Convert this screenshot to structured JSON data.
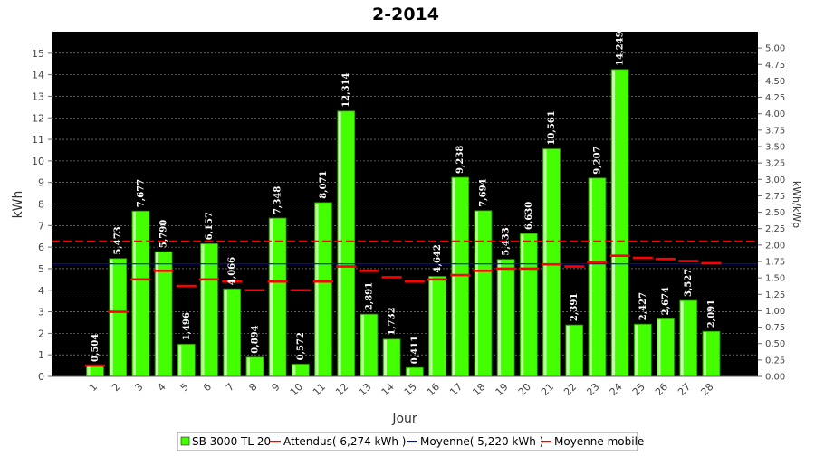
{
  "chart_data": {
    "type": "bar",
    "title": "2-2014",
    "xlabel": "Jour",
    "ylabel": "kWh",
    "ylabel_right": "kWh/kWp",
    "ylim": [
      0,
      16
    ],
    "y_ticks": [
      "0",
      "1",
      "2",
      "3",
      "4",
      "5",
      "6",
      "7",
      "8",
      "9",
      "10",
      "11",
      "12",
      "13",
      "14",
      "15"
    ],
    "ylim_right": [
      0,
      5.25
    ],
    "y_ticks_right": [
      "0,00",
      "0,25",
      "0,50",
      "0,75",
      "1,00",
      "1,25",
      "1,50",
      "1,75",
      "2,00",
      "2,25",
      "2,50",
      "2,75",
      "3,00",
      "3,25",
      "3,50",
      "3,75",
      "4,00",
      "4,25",
      "4,50",
      "4,75",
      "5,00"
    ],
    "categories": [
      "1",
      "2",
      "3",
      "4",
      "5",
      "6",
      "7",
      "8",
      "9",
      "10",
      "11",
      "12",
      "13",
      "14",
      "15",
      "16",
      "17",
      "18",
      "19",
      "20",
      "21",
      "22",
      "23",
      "24",
      "25",
      "26",
      "27",
      "28"
    ],
    "series": [
      {
        "name": "SB 3000 TL 20",
        "values": [
          0.504,
          5.473,
          7.677,
          5.79,
          1.496,
          6.157,
          4.066,
          0.894,
          7.348,
          0.572,
          8.071,
          12.314,
          2.891,
          1.732,
          0.411,
          4.642,
          9.238,
          7.694,
          5.433,
          6.63,
          10.561,
          2.391,
          9.207,
          14.249,
          2.427,
          2.674,
          3.527,
          2.091
        ],
        "value_labels": [
          "0,504",
          "5,473",
          "7,677",
          "5,790",
          "1,496",
          "6,157",
          "4,066",
          "0,894",
          "7,348",
          "0,572",
          "8,071",
          "12,314",
          "2,891",
          "1,732",
          "0,411",
          "4,642",
          "9,238",
          "7,694",
          "5,433",
          "6,630",
          "10,561",
          "2,391",
          "9,207",
          "14,249",
          "2,427",
          "2,674",
          "3,527",
          "2,091"
        ],
        "color": "#44ff00"
      },
      {
        "name": "Attendus( 6,274 kWh )",
        "value": 6.274,
        "color": "#ff0000"
      },
      {
        "name": "Moyenne( 5,220 kWh )",
        "value": 5.22,
        "color": "#0000ff"
      },
      {
        "name": "Moyenne mobile",
        "values": [
          0.5,
          3.0,
          4.5,
          4.9,
          4.2,
          4.5,
          4.4,
          4.0,
          4.4,
          4.0,
          4.4,
          5.1,
          4.9,
          4.6,
          4.4,
          4.5,
          4.7,
          4.9,
          5.0,
          5.0,
          5.2,
          5.1,
          5.3,
          5.6,
          5.5,
          5.45,
          5.35,
          5.25
        ],
        "color": "#ff0000"
      }
    ],
    "legend_position": "bottom",
    "grid": true,
    "plot_background": "#000000"
  }
}
